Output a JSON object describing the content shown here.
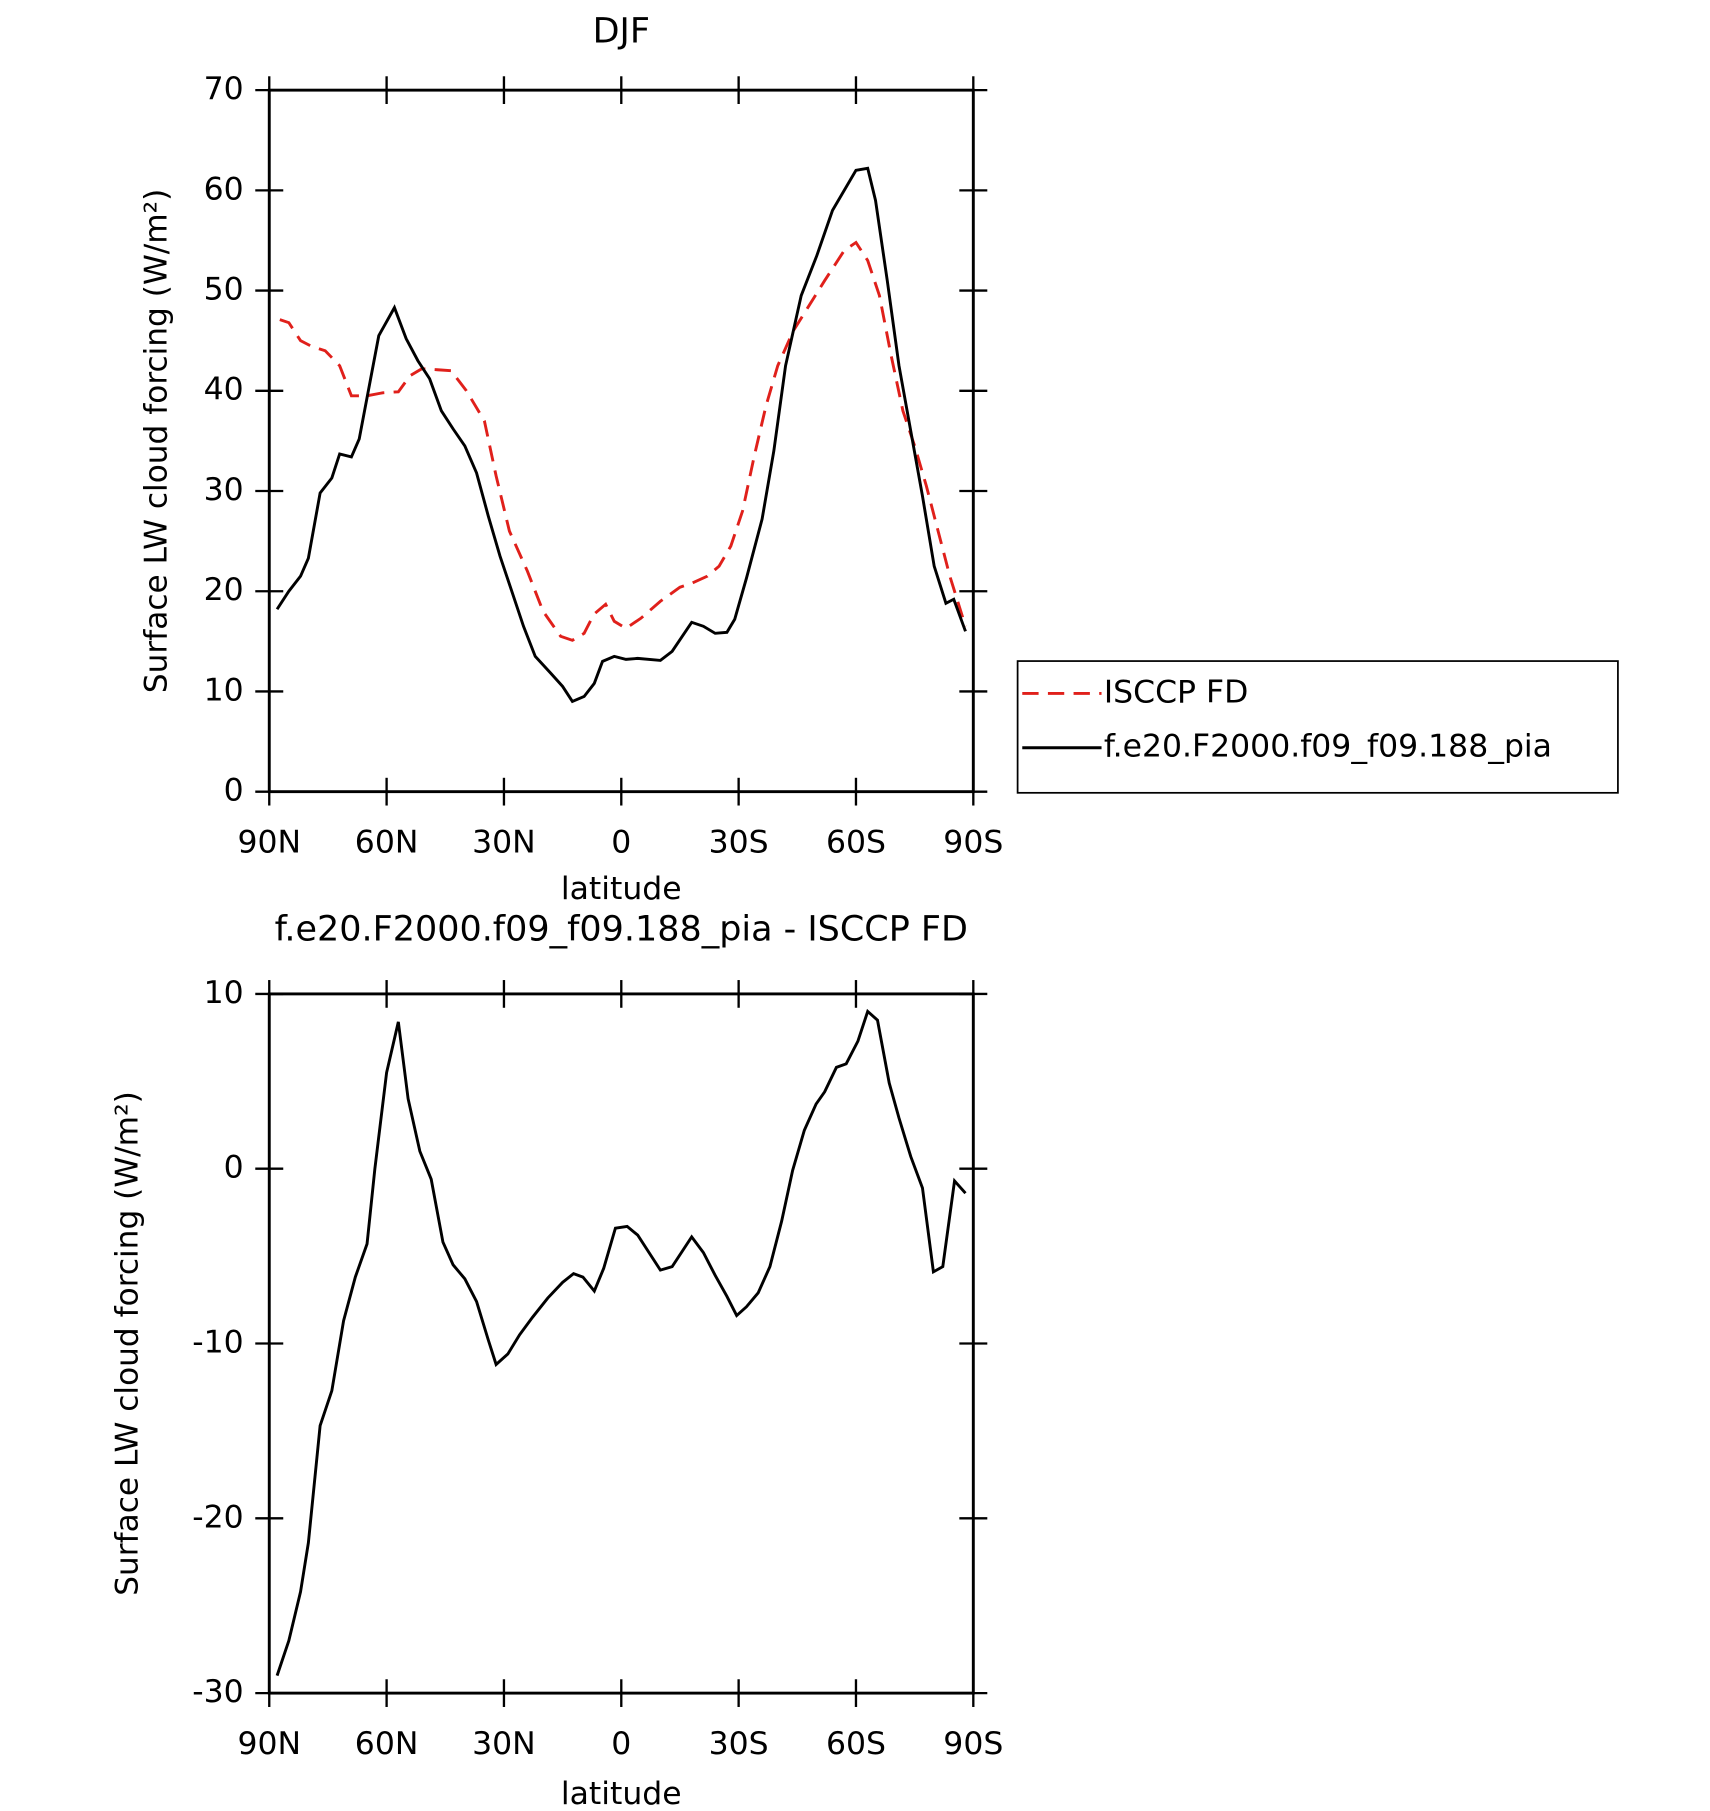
{
  "chart_data": [
    {
      "type": "line",
      "title": "DJF",
      "xlabel": "latitude",
      "ylabel": "Surface LW cloud forcing (W/m²)",
      "xlim": [
        90,
        -90
      ],
      "xticks": [
        {
          "value": 90,
          "label": "90N"
        },
        {
          "value": 60,
          "label": "60N"
        },
        {
          "value": 30,
          "label": "30N"
        },
        0,
        {
          "value": -30,
          "label": "30S"
        },
        {
          "value": -60,
          "label": "60S"
        },
        {
          "value": -90,
          "label": "90S"
        }
      ],
      "ylim": [
        0,
        70
      ],
      "yticks": [
        0,
        10,
        20,
        30,
        40,
        50,
        60,
        70
      ],
      "legend": "right",
      "series": [
        {
          "name": "ISCCP FD",
          "color": "#e0201b",
          "dash": true,
          "x": [
            87.3,
            85,
            82,
            79,
            75.7,
            72,
            69,
            65,
            61,
            57,
            54,
            51,
            47,
            43.5,
            39.6,
            35,
            32,
            28.6,
            24,
            20,
            15.5,
            12.5,
            9.5,
            7,
            4,
            1.8,
            -1.2,
            -5,
            -10,
            -15,
            -18,
            -22,
            -25,
            -28,
            -31,
            -34,
            -37,
            -40,
            -44,
            -48,
            -52,
            -57,
            -60,
            -63,
            -66,
            -69,
            -72,
            -75,
            -78,
            -81,
            -84,
            -88
          ],
          "values": [
            47.1,
            46.8,
            45,
            44.4,
            44,
            42.5,
            39.5,
            39.5,
            39.8,
            39.9,
            41.5,
            42.2,
            42.1,
            42.0,
            40,
            37,
            31.5,
            26,
            22,
            18,
            15.5,
            15.1,
            15.8,
            17.7,
            18.7,
            17,
            16.3,
            17.3,
            19,
            20.4,
            20.8,
            21.5,
            22.5,
            24.5,
            28,
            33.5,
            38.5,
            42.5,
            46,
            48.5,
            51,
            54,
            54.8,
            53,
            49.5,
            43.5,
            38,
            34.5,
            30.5,
            26,
            21.5,
            16.5
          ]
        },
        {
          "name": "f.e20.F2000.f09_f09.188_pia",
          "color": "#000000",
          "dash": false,
          "x": [
            88,
            85,
            82,
            80,
            77,
            74,
            72,
            69,
            67,
            62,
            58,
            55,
            52,
            49,
            46,
            43,
            40,
            37,
            34,
            31,
            28,
            25,
            22,
            18,
            15,
            12.5,
            9.5,
            6.9,
            4.8,
            1.8,
            -1.2,
            -4.2,
            -10,
            -13,
            -18,
            -21,
            -24,
            -27,
            -29,
            -32,
            -36,
            -39,
            -42,
            -46,
            -50,
            -54,
            -60,
            -63,
            -65,
            -68,
            -71,
            -74,
            -77,
            -80,
            -83,
            -85,
            -88
          ],
          "values": [
            18.2,
            20.0,
            21.5,
            23.3,
            29.8,
            31.3,
            33.7,
            33.4,
            35.2,
            45.5,
            48.3,
            45.2,
            43.0,
            41.2,
            38.0,
            36.2,
            34.5,
            31.8,
            27.5,
            23.5,
            20.0,
            16.5,
            13.5,
            11.8,
            10.5,
            9.0,
            9.5,
            10.8,
            13.0,
            13.5,
            13.2,
            13.3,
            13.1,
            14.0,
            16.9,
            16.5,
            15.8,
            15.9,
            17.2,
            21.3,
            27.2,
            34,
            42.5,
            49.5,
            53.5,
            58,
            62,
            62.2,
            59,
            51,
            42.5,
            36,
            29.5,
            22.5,
            18.8,
            19.2,
            16
          ]
        }
      ]
    },
    {
      "type": "line",
      "title": "f.e20.F2000.f09_f09.188_pia - ISCCP FD",
      "xlabel": "latitude",
      "ylabel": "Surface LW cloud forcing (W/m²)",
      "xlim": [
        90,
        -90
      ],
      "xticks": [
        {
          "value": 90,
          "label": "90N"
        },
        {
          "value": 60,
          "label": "60N"
        },
        {
          "value": 30,
          "label": "30N"
        },
        0,
        {
          "value": -30,
          "label": "30S"
        },
        {
          "value": -60,
          "label": "60S"
        },
        {
          "value": -90,
          "label": "90S"
        }
      ],
      "ylim": [
        -30,
        10
      ],
      "yticks": [
        -30,
        -20,
        -10,
        0,
        10
      ],
      "series": [
        {
          "color": "#000000",
          "dash": false,
          "x": [
            88,
            85,
            82,
            80,
            77,
            74,
            71,
            68,
            65,
            63,
            60,
            57,
            54.5,
            51.5,
            48.6,
            45.6,
            43,
            40,
            37,
            34,
            32,
            29,
            26,
            22.7,
            18.8,
            15,
            12.2,
            9.8,
            6.9,
            4.5,
            1.5,
            -1.5,
            -4.2,
            -7.1,
            -10,
            -13,
            -18,
            -21,
            -24,
            -27,
            -29.5,
            -32,
            -35,
            -38,
            -41,
            -43.8,
            -46.8,
            -49.8,
            -52,
            -55,
            -57.5,
            -60.5,
            -63,
            -65.5,
            -68.5,
            -71,
            -74,
            -77,
            -79.8,
            -82.2,
            -85.2,
            -88
          ],
          "values": [
            -29.0,
            -27.0,
            -24.2,
            -21.4,
            -14.7,
            -12.7,
            -8.7,
            -6.2,
            -4.3,
            0,
            5.5,
            8.4,
            4.0,
            1.0,
            -0.6,
            -4.2,
            -5.5,
            -6.3,
            -7.6,
            -9.8,
            -11.2,
            -10.6,
            -9.5,
            -8.5,
            -7.4,
            -6.5,
            -6.0,
            -6.2,
            -7.0,
            -5.7,
            -3.4,
            -3.3,
            -3.8,
            -4.8,
            -5.8,
            -5.6,
            -3.9,
            -4.8,
            -6.1,
            -7.3,
            -8.4,
            -7.9,
            -7.1,
            -5.6,
            -3.0,
            -0.1,
            2.2,
            3.7,
            4.4,
            5.8,
            6.0,
            7.3,
            9.0,
            8.5,
            4.9,
            2.9,
            0.7,
            -1.1,
            -5.9,
            -5.6,
            -0.7,
            -1.4
          ]
        }
      ]
    }
  ]
}
